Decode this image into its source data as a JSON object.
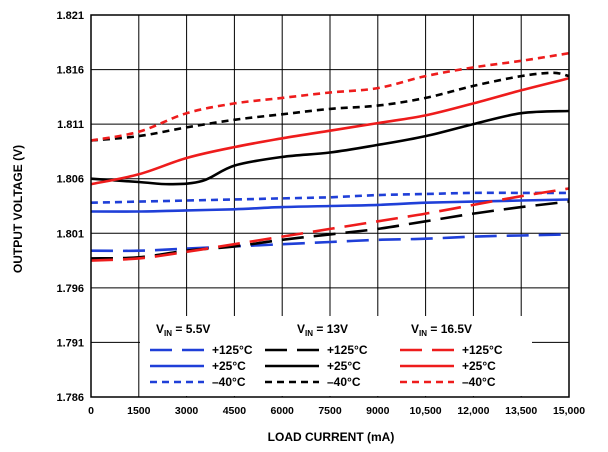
{
  "chart_data": {
    "type": "line",
    "xlabel": "LOAD CURRENT (mA)",
    "ylabel": "OUTPUT VOLTAGE (V)",
    "xlim": [
      0,
      15000
    ],
    "ylim": [
      1.786,
      1.821
    ],
    "x_ticks": [
      "0",
      "1500",
      "3000",
      "4500",
      "6000",
      "7500",
      "9000",
      "10,500",
      "12,000",
      "13,500",
      "15,000"
    ],
    "y_ticks": [
      "1.786",
      "1.791",
      "1.796",
      "1.801",
      "1.806",
      "1.811",
      "1.816",
      "1.821"
    ],
    "grid": true,
    "legend": {
      "placement": "bottom-center",
      "groups": [
        {
          "vin_main": "V",
          "vin_sub": "IN",
          "vin_value": " = 5.5V",
          "color": "#1f3fd8"
        },
        {
          "vin_main": "V",
          "vin_sub": "IN",
          "vin_value": " = 13V",
          "color": "#000000"
        },
        {
          "vin_main": "V",
          "vin_sub": "IN",
          "vin_value": " = 16.5V",
          "color": "#ee1c1c"
        }
      ],
      "temps": [
        "+125°C",
        "+25°C",
        "–40°C"
      ],
      "temp_styles": [
        "long-dash",
        "solid",
        "short-dash"
      ]
    },
    "series": [
      {
        "vin": "5.5V",
        "temp": "+125°C",
        "color": "#1f3fd8",
        "style": "long-dash",
        "x": [
          0,
          1500,
          3000,
          4500,
          6000,
          7500,
          9000,
          10500,
          12000,
          13500,
          15000
        ],
        "y": [
          1.7994,
          1.7994,
          1.7996,
          1.7998,
          1.8,
          1.8002,
          1.8004,
          1.8005,
          1.8007,
          1.8008,
          1.8009
        ]
      },
      {
        "vin": "5.5V",
        "temp": "+25°C",
        "color": "#1f3fd8",
        "style": "solid",
        "x": [
          0,
          1500,
          3000,
          4500,
          6000,
          7500,
          9000,
          10500,
          12000,
          13500,
          15000
        ],
        "y": [
          1.803,
          1.803,
          1.8031,
          1.8032,
          1.8034,
          1.8035,
          1.8036,
          1.8038,
          1.8039,
          1.804,
          1.8041
        ]
      },
      {
        "vin": "5.5V",
        "temp": "–40°C",
        "color": "#1f3fd8",
        "style": "short-dash",
        "x": [
          0,
          1500,
          3000,
          4500,
          6000,
          7500,
          9000,
          10500,
          12000,
          13500,
          15000
        ],
        "y": [
          1.8038,
          1.8039,
          1.804,
          1.8041,
          1.8042,
          1.8043,
          1.8045,
          1.8046,
          1.8047,
          1.8047,
          1.8047
        ]
      },
      {
        "vin": "13V",
        "temp": "+125°C",
        "color": "#000000",
        "style": "long-dash",
        "x": [
          0,
          1500,
          3000,
          4500,
          6000,
          7500,
          9000,
          10500,
          12000,
          13500,
          15000
        ],
        "y": [
          1.7987,
          1.7988,
          1.7994,
          1.7998,
          1.8004,
          1.8009,
          1.8014,
          1.8021,
          1.8028,
          1.8034,
          1.8039
        ]
      },
      {
        "vin": "13V",
        "temp": "+25°C",
        "color": "#000000",
        "style": "solid",
        "x": [
          0,
          1500,
          2500,
          3500,
          4500,
          6000,
          7500,
          9000,
          10500,
          12000,
          13500,
          15000
        ],
        "y": [
          1.806,
          1.8057,
          1.8055,
          1.8058,
          1.8072,
          1.808,
          1.8084,
          1.8091,
          1.8099,
          1.811,
          1.812,
          1.8122
        ]
      },
      {
        "vin": "13V",
        "temp": "–40°C",
        "color": "#000000",
        "style": "short-dash",
        "x": [
          0,
          1500,
          3000,
          4500,
          6000,
          7500,
          9000,
          10500,
          12000,
          13500,
          14500,
          15000
        ],
        "y": [
          1.8095,
          1.8099,
          1.8107,
          1.8114,
          1.8119,
          1.8124,
          1.8127,
          1.8134,
          1.8145,
          1.8154,
          1.8157,
          1.8154
        ]
      },
      {
        "vin": "16.5V",
        "temp": "+125°C",
        "color": "#ee1c1c",
        "style": "long-dash",
        "x": [
          0,
          1500,
          3000,
          4500,
          6000,
          7500,
          9000,
          10500,
          12000,
          13500,
          15000
        ],
        "y": [
          1.7985,
          1.7987,
          1.7993,
          1.8,
          1.8007,
          1.8014,
          1.8021,
          1.8028,
          1.8036,
          1.8044,
          1.8051
        ]
      },
      {
        "vin": "16.5V",
        "temp": "+25°C",
        "color": "#ee1c1c",
        "style": "solid",
        "x": [
          0,
          1500,
          3000,
          4500,
          6000,
          7500,
          9000,
          10500,
          12000,
          13500,
          15000
        ],
        "y": [
          1.8055,
          1.8064,
          1.8079,
          1.8089,
          1.8097,
          1.8104,
          1.8111,
          1.8118,
          1.8129,
          1.8141,
          1.8152
        ]
      },
      {
        "vin": "16.5V",
        "temp": "–40°C",
        "color": "#ee1c1c",
        "style": "short-dash",
        "x": [
          0,
          1500,
          3000,
          4500,
          6000,
          7500,
          9000,
          10500,
          12000,
          13500,
          15000
        ],
        "y": [
          1.8095,
          1.8103,
          1.812,
          1.8129,
          1.8134,
          1.8139,
          1.8143,
          1.8154,
          1.8162,
          1.8168,
          1.8175
        ]
      }
    ]
  }
}
